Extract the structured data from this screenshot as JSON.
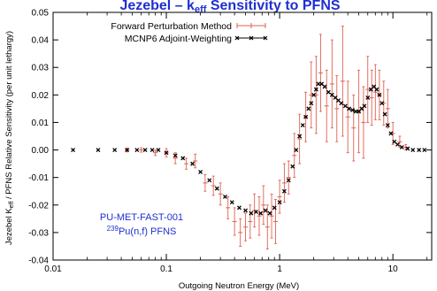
{
  "chart_data": {
    "type": "scatter",
    "title_prefix": "Jezebel",
    "title_k": "k",
    "title_k_sub": "eff",
    "title_rest": "Sensitivity to PFNS",
    "ylabel_a": "Jezebel K",
    "ylabel_sub": "eff",
    "ylabel_b": " / PFNS Relative Sensitivity (per unit lethargy)",
    "xlabel": "Outgoing Neutron Energy (MeV)",
    "xscale": "log",
    "xlim": [
      0.01,
      22
    ],
    "ylim": [
      -0.04,
      0.05
    ],
    "xticks": [
      {
        "v": 0.01,
        "label": "0.01"
      },
      {
        "v": 0.1,
        "label": "0.1"
      },
      {
        "v": 1,
        "label": "1"
      },
      {
        "v": 10,
        "label": "10"
      }
    ],
    "yticks": [
      {
        "v": 0.05,
        "label": "0.05"
      },
      {
        "v": 0.04,
        "label": "0.04"
      },
      {
        "v": 0.03,
        "label": "0.03"
      },
      {
        "v": 0.02,
        "label": "0.02"
      },
      {
        "v": 0.01,
        "label": "0.01"
      },
      {
        "v": 0.0,
        "label": "0.00"
      },
      {
        "v": -0.01,
        "label": "-0.01"
      },
      {
        "v": -0.02,
        "label": "-0.02"
      },
      {
        "v": -0.03,
        "label": "-0.03"
      },
      {
        "v": -0.04,
        "label": "-0.04"
      }
    ],
    "legend_position": "top-left",
    "annotation_line1": "PU-MET-FAST-001",
    "annotation_line2_sup": "239",
    "annotation_line2": "Pu(n,f) PFNS",
    "series": [
      {
        "name": "Forward Perturbation Method",
        "color": "#e06050",
        "marker": "plus-errorbar",
        "points": [
          {
            "x": 0.045,
            "y": 0.0,
            "err": 0.0007
          },
          {
            "x": 0.06,
            "y": 0.0,
            "err": 0.0008
          },
          {
            "x": 0.08,
            "y": -0.001,
            "err": 0.001
          },
          {
            "x": 0.1,
            "y": -0.001,
            "err": 0.0015
          },
          {
            "x": 0.12,
            "y": -0.003,
            "err": 0.002
          },
          {
            "x": 0.15,
            "y": -0.005,
            "err": 0.002
          },
          {
            "x": 0.18,
            "y": -0.004,
            "err": 0.0025
          },
          {
            "x": 0.22,
            "y": -0.012,
            "err": 0.003
          },
          {
            "x": 0.26,
            "y": -0.013,
            "err": 0.0035
          },
          {
            "x": 0.3,
            "y": -0.016,
            "err": 0.004
          },
          {
            "x": 0.35,
            "y": -0.021,
            "err": 0.004
          },
          {
            "x": 0.4,
            "y": -0.026,
            "err": 0.005
          },
          {
            "x": 0.45,
            "y": -0.03,
            "err": 0.005
          },
          {
            "x": 0.5,
            "y": -0.028,
            "err": 0.005
          },
          {
            "x": 0.55,
            "y": -0.026,
            "err": 0.006
          },
          {
            "x": 0.6,
            "y": -0.022,
            "err": 0.006
          },
          {
            "x": 0.66,
            "y": -0.024,
            "err": 0.007
          },
          {
            "x": 0.72,
            "y": -0.02,
            "err": 0.007
          },
          {
            "x": 0.78,
            "y": -0.028,
            "err": 0.008
          },
          {
            "x": 0.85,
            "y": -0.024,
            "err": 0.008
          },
          {
            "x": 0.92,
            "y": -0.026,
            "err": 0.008
          },
          {
            "x": 1.0,
            "y": -0.017,
            "err": 0.006
          },
          {
            "x": 1.1,
            "y": -0.012,
            "err": 0.007
          },
          {
            "x": 1.2,
            "y": -0.01,
            "err": 0.006
          },
          {
            "x": 1.35,
            "y": -0.002,
            "err": 0.008
          },
          {
            "x": 1.5,
            "y": 0.004,
            "err": 0.009
          },
          {
            "x": 1.7,
            "y": 0.012,
            "err": 0.009
          },
          {
            "x": 1.9,
            "y": 0.02,
            "err": 0.012
          },
          {
            "x": 2.1,
            "y": 0.02,
            "err": 0.014
          },
          {
            "x": 2.3,
            "y": 0.028,
            "err": 0.014
          },
          {
            "x": 2.6,
            "y": 0.016,
            "err": 0.013
          },
          {
            "x": 2.9,
            "y": 0.024,
            "err": 0.016
          },
          {
            "x": 3.2,
            "y": 0.015,
            "err": 0.012
          },
          {
            "x": 3.6,
            "y": 0.025,
            "err": 0.02
          },
          {
            "x": 4.0,
            "y": 0.012,
            "err": 0.013
          },
          {
            "x": 4.5,
            "y": 0.008,
            "err": 0.012
          },
          {
            "x": 5.0,
            "y": 0.014,
            "err": 0.015
          },
          {
            "x": 5.5,
            "y": 0.01,
            "err": 0.013
          },
          {
            "x": 6.0,
            "y": 0.022,
            "err": 0.012
          },
          {
            "x": 6.5,
            "y": 0.019,
            "err": 0.01
          },
          {
            "x": 7.0,
            "y": 0.021,
            "err": 0.01
          },
          {
            "x": 7.6,
            "y": 0.02,
            "err": 0.009
          },
          {
            "x": 8.3,
            "y": 0.017,
            "err": 0.008
          },
          {
            "x": 9.0,
            "y": 0.015,
            "err": 0.007
          },
          {
            "x": 10.0,
            "y": 0.006,
            "err": 0.004
          },
          {
            "x": 11.5,
            "y": 0.003,
            "err": 0.002
          },
          {
            "x": 13.0,
            "y": 0.001,
            "err": 0.001
          }
        ]
      },
      {
        "name": "MCNP6 Adjoint-Weighting",
        "color": "#000000",
        "marker": "x",
        "points": [
          {
            "x": 0.015,
            "y": 0.0
          },
          {
            "x": 0.025,
            "y": 0.0
          },
          {
            "x": 0.035,
            "y": 0.0
          },
          {
            "x": 0.045,
            "y": 0.0
          },
          {
            "x": 0.055,
            "y": 0.0
          },
          {
            "x": 0.065,
            "y": 0.0
          },
          {
            "x": 0.075,
            "y": 0.0
          },
          {
            "x": 0.085,
            "y": 0.0
          },
          {
            "x": 0.1,
            "y": -0.001
          },
          {
            "x": 0.12,
            "y": -0.002
          },
          {
            "x": 0.14,
            "y": -0.003
          },
          {
            "x": 0.17,
            "y": -0.005
          },
          {
            "x": 0.2,
            "y": -0.008
          },
          {
            "x": 0.24,
            "y": -0.011
          },
          {
            "x": 0.28,
            "y": -0.014
          },
          {
            "x": 0.33,
            "y": -0.017
          },
          {
            "x": 0.38,
            "y": -0.019
          },
          {
            "x": 0.44,
            "y": -0.021
          },
          {
            "x": 0.5,
            "y": -0.022
          },
          {
            "x": 0.56,
            "y": -0.023
          },
          {
            "x": 0.62,
            "y": -0.0225
          },
          {
            "x": 0.68,
            "y": -0.023
          },
          {
            "x": 0.75,
            "y": -0.022
          },
          {
            "x": 0.82,
            "y": -0.023
          },
          {
            "x": 0.9,
            "y": -0.021
          },
          {
            "x": 1.0,
            "y": -0.019
          },
          {
            "x": 1.1,
            "y": -0.015
          },
          {
            "x": 1.2,
            "y": -0.011
          },
          {
            "x": 1.3,
            "y": -0.006
          },
          {
            "x": 1.4,
            "y": 0.0
          },
          {
            "x": 1.5,
            "y": 0.005
          },
          {
            "x": 1.6,
            "y": 0.009
          },
          {
            "x": 1.7,
            "y": 0.012
          },
          {
            "x": 1.8,
            "y": 0.015
          },
          {
            "x": 1.9,
            "y": 0.017
          },
          {
            "x": 2.0,
            "y": 0.02
          },
          {
            "x": 2.1,
            "y": 0.022
          },
          {
            "x": 2.2,
            "y": 0.024
          },
          {
            "x": 2.35,
            "y": 0.024
          },
          {
            "x": 2.5,
            "y": 0.023
          },
          {
            "x": 2.7,
            "y": 0.021
          },
          {
            "x": 2.9,
            "y": 0.02
          },
          {
            "x": 3.1,
            "y": 0.019
          },
          {
            "x": 3.3,
            "y": 0.018
          },
          {
            "x": 3.5,
            "y": 0.017
          },
          {
            "x": 3.8,
            "y": 0.016
          },
          {
            "x": 4.1,
            "y": 0.015
          },
          {
            "x": 4.4,
            "y": 0.0145
          },
          {
            "x": 4.7,
            "y": 0.014
          },
          {
            "x": 5.0,
            "y": 0.014
          },
          {
            "x": 5.3,
            "y": 0.015
          },
          {
            "x": 5.6,
            "y": 0.016
          },
          {
            "x": 6.0,
            "y": 0.019
          },
          {
            "x": 6.4,
            "y": 0.022
          },
          {
            "x": 6.8,
            "y": 0.023
          },
          {
            "x": 7.2,
            "y": 0.022
          },
          {
            "x": 7.6,
            "y": 0.02
          },
          {
            "x": 8.0,
            "y": 0.017
          },
          {
            "x": 8.5,
            "y": 0.013
          },
          {
            "x": 9.0,
            "y": 0.009
          },
          {
            "x": 9.6,
            "y": 0.006
          },
          {
            "x": 10.3,
            "y": 0.003
          },
          {
            "x": 11.0,
            "y": 0.002
          },
          {
            "x": 12.0,
            "y": 0.001
          },
          {
            "x": 13.5,
            "y": 0.0005
          },
          {
            "x": 15.0,
            "y": 0.0
          },
          {
            "x": 17.0,
            "y": 0.0
          },
          {
            "x": 19.0,
            "y": 0.0
          }
        ]
      }
    ]
  }
}
